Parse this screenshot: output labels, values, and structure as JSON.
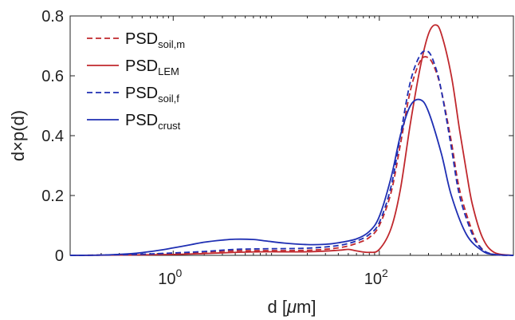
{
  "chart_data": {
    "type": "line",
    "x_scale": "log",
    "xlim": [
      0.1,
      2000
    ],
    "ylim": [
      0,
      0.8
    ],
    "xlabel_prefix": "d [",
    "xlabel_mu": "μ",
    "xlabel_suffix": "m]",
    "ylabel": "d×p(d)",
    "x_ticks": [
      {
        "value": 1,
        "base": "10",
        "exp": "0"
      },
      {
        "value": 100,
        "base": "10",
        "exp": "2"
      }
    ],
    "y_ticks": [
      {
        "value": 0,
        "label": "0"
      },
      {
        "value": 0.2,
        "label": "0.2"
      },
      {
        "value": 0.4,
        "label": "0.4"
      },
      {
        "value": 0.6,
        "label": "0.6"
      },
      {
        "value": 0.8,
        "label": "0.8"
      }
    ],
    "grid": false,
    "legend_position": "top-left",
    "series": [
      {
        "name_main": "PSD",
        "name_sub": "soil,m",
        "color": "#c0282d",
        "dash": "dashed",
        "x": [
          0.1,
          0.2,
          0.5,
          1,
          2,
          4,
          8,
          20,
          40,
          60,
          80,
          100,
          130,
          160,
          200,
          250,
          300,
          350,
          400,
          500,
          600,
          800,
          1000,
          1300,
          2000
        ],
        "y": [
          0,
          0.001,
          0.003,
          0.006,
          0.011,
          0.015,
          0.016,
          0.017,
          0.025,
          0.04,
          0.06,
          0.1,
          0.21,
          0.37,
          0.55,
          0.65,
          0.66,
          0.62,
          0.55,
          0.38,
          0.22,
          0.08,
          0.02,
          0.003,
          0
        ]
      },
      {
        "name_main": "PSD",
        "name_sub": "LEM",
        "color": "#c0282d",
        "dash": "solid",
        "x": [
          0.1,
          0.3,
          1,
          2,
          4,
          8,
          20,
          40,
          50,
          60,
          80,
          100,
          130,
          160,
          200,
          250,
          300,
          350,
          400,
          500,
          600,
          700,
          800,
          1000,
          1300,
          2000
        ],
        "y": [
          0,
          0.001,
          0.003,
          0.006,
          0.01,
          0.012,
          0.012,
          0.017,
          0.02,
          0.015,
          0.01,
          0.02,
          0.09,
          0.22,
          0.44,
          0.63,
          0.74,
          0.77,
          0.74,
          0.6,
          0.42,
          0.28,
          0.17,
          0.06,
          0.01,
          0
        ]
      },
      {
        "name_main": "PSD",
        "name_sub": "soil,f",
        "color": "#1f2fb3",
        "dash": "dashed",
        "x": [
          0.1,
          0.2,
          0.5,
          1,
          2,
          4,
          8,
          20,
          40,
          60,
          80,
          100,
          130,
          160,
          200,
          250,
          300,
          350,
          400,
          500,
          600,
          800,
          1000,
          1300,
          2000
        ],
        "y": [
          0,
          0.001,
          0.004,
          0.008,
          0.013,
          0.02,
          0.022,
          0.024,
          0.033,
          0.048,
          0.07,
          0.11,
          0.23,
          0.4,
          0.58,
          0.67,
          0.68,
          0.63,
          0.55,
          0.36,
          0.2,
          0.07,
          0.02,
          0.003,
          0
        ]
      },
      {
        "name_main": "PSD",
        "name_sub": "crust",
        "color": "#1f2fb3",
        "dash": "solid",
        "x": [
          0.1,
          0.2,
          0.4,
          0.7,
          1,
          1.5,
          2,
          3,
          4,
          6,
          8,
          12,
          20,
          30,
          40,
          60,
          80,
          100,
          130,
          160,
          200,
          250,
          300,
          400,
          500,
          700,
          1000,
          1300,
          2000
        ],
        "y": [
          0,
          0.001,
          0.006,
          0.016,
          0.025,
          0.036,
          0.044,
          0.051,
          0.054,
          0.053,
          0.048,
          0.041,
          0.036,
          0.037,
          0.042,
          0.055,
          0.08,
          0.13,
          0.26,
          0.4,
          0.5,
          0.52,
          0.48,
          0.34,
          0.2,
          0.07,
          0.015,
          0.003,
          0
        ]
      }
    ]
  }
}
